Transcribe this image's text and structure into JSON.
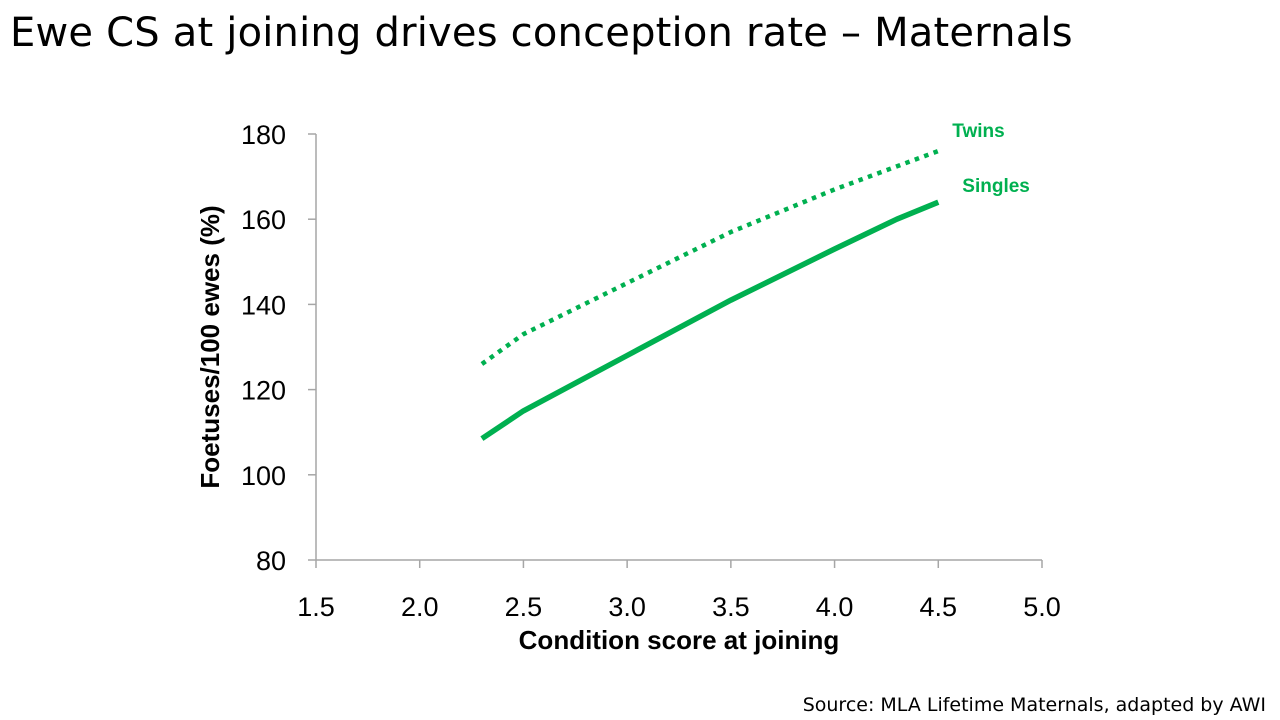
{
  "slide": {
    "title": "Ewe CS at joining drives conception rate – Maternals",
    "source": "Source: MLA Lifetime Maternals, adapted by AWI"
  },
  "chart_data": {
    "type": "line",
    "title": "Ewe CS at joining drives conception rate – Maternals",
    "xlabel": "Condition score at joining",
    "ylabel": "Foetuses/100 ewes (%)",
    "xlim": [
      1.5,
      5.0
    ],
    "ylim": [
      80,
      180
    ],
    "x_ticks": [
      "1.5",
      "2.0",
      "2.5",
      "3.0",
      "3.5",
      "4.0",
      "4.5",
      "5.0"
    ],
    "y_ticks": [
      "80",
      "100",
      "120",
      "140",
      "160",
      "180"
    ],
    "grid": false,
    "color": "#00b050",
    "series": [
      {
        "name": "Twins",
        "style": "dotted",
        "x": [
          2.3,
          2.5,
          3.0,
          3.5,
          4.0,
          4.5
        ],
        "y": [
          126,
          133,
          145,
          157,
          167,
          176
        ]
      },
      {
        "name": "Singles",
        "style": "solid",
        "x": [
          2.3,
          2.5,
          3.0,
          3.5,
          4.0,
          4.3,
          4.5
        ],
        "y": [
          108.5,
          115,
          128,
          141,
          153,
          160,
          164
        ]
      }
    ]
  }
}
